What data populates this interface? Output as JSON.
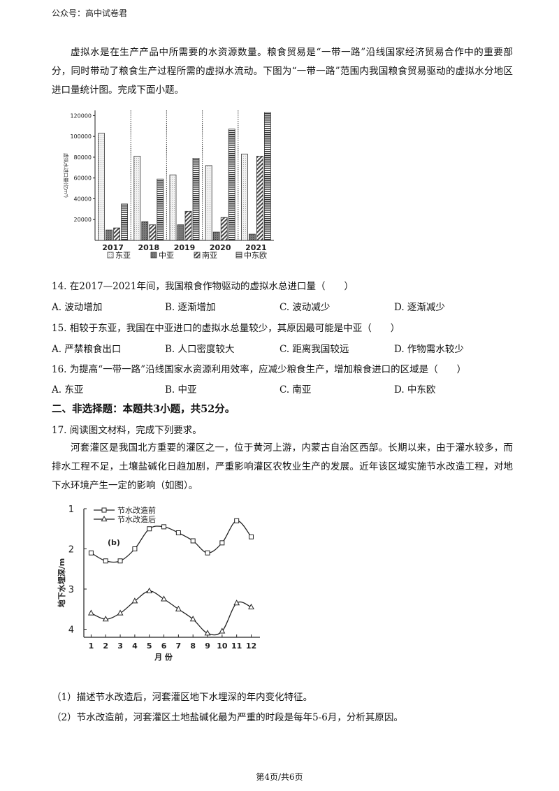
{
  "header": "公众号：高中试卷君",
  "intro": "虚拟水是在生产产品中所需要的水资源数量。粮食贸易是“一带一路”沿线国家经济贸易合作中的重要部分，同时带动了粮食生产过程所需的虚拟水流动。下图为“一带一路”范围内我国粮食贸易驱动的虚拟水分地区进口量统计图。完成下面小题。",
  "colors": {
    "bar_east": "#ededed",
    "bar_central": "#777777",
    "bar_south": "#bbbbbb",
    "bar_mideu": "#555555"
  },
  "chart_data": [
    {
      "type": "bar",
      "categories": [
        "2017",
        "2018",
        "2019",
        "2020",
        "2021"
      ],
      "series": [
        {
          "name": "东亚",
          "values": [
            103000,
            81000,
            63000,
            72000,
            83000
          ]
        },
        {
          "name": "中亚",
          "values": [
            10000,
            18000,
            15000,
            8000,
            6000
          ]
        },
        {
          "name": "南亚",
          "values": [
            12000,
            15000,
            28000,
            22000,
            81000
          ]
        },
        {
          "name": "中东欧",
          "values": [
            35000,
            59000,
            79000,
            107000,
            123000
          ]
        }
      ],
      "ylabel": "虚拟水进口量(亿m³)",
      "yticks": [
        "20000",
        "40000",
        "60000",
        "80000",
        "100000",
        "120000"
      ],
      "ylim": [
        0,
        125000
      ],
      "legend_position": "bottom",
      "grid": false
    },
    {
      "type": "line",
      "annotation": "(b)",
      "x": [
        1,
        2,
        3,
        4,
        5,
        6,
        7,
        8,
        9,
        10,
        11,
        12
      ],
      "xticks": [
        "1",
        "2",
        "3",
        "4",
        "5",
        "6",
        "7",
        "8",
        "9",
        "10",
        "11",
        "12"
      ],
      "yticks": [
        "1",
        "2",
        "3",
        "4"
      ],
      "ylim": [
        1,
        4.2
      ],
      "xlabel": "月 份",
      "ylabel": "地下水埋深/m",
      "series": [
        {
          "name": "节水改造前",
          "values": [
            2.1,
            2.3,
            2.3,
            2.0,
            1.5,
            1.45,
            1.6,
            1.8,
            2.1,
            1.85,
            1.3,
            1.7
          ]
        },
        {
          "name": "节水改造后",
          "values": [
            3.6,
            3.75,
            3.6,
            3.3,
            3.05,
            3.25,
            3.5,
            3.75,
            4.1,
            4.05,
            3.35,
            3.45
          ]
        }
      ],
      "legend_position": "top-left"
    }
  ],
  "questions": [
    {
      "stem": "14. 在2017—2021年间，我国粮食作物驱动的虚拟水总进口量（　　）",
      "options": [
        "A. 波动增加",
        "B. 逐渐增加",
        "C. 波动减少",
        "D. 逐渐减少"
      ]
    },
    {
      "stem": "15. 相较于东亚，我国在中亚进口的虚拟水总量较少，其原因最可能是中亚（　　）",
      "options": [
        "A. 严禁粮食出口",
        "B. 人口密度较大",
        "C. 距离我国较远",
        "D. 作物需水较少"
      ]
    },
    {
      "stem": "16. 为提高“一带一路”沿线国家水资源利用效率，应减少粮食生产，增加粮食进口的区域是（　　）",
      "options": [
        "A. 东亚",
        "B. 中亚",
        "C. 南亚",
        "D. 中东欧"
      ]
    }
  ],
  "section2": "二、非选择题：本题共3小题，共52分。",
  "q17": {
    "stem": "17. 阅读图文材料，完成下列要求。",
    "material": "河套灌区是我国北方重要的灌区之一，位于黄河上游，内蒙古自治区西部。长期以来，由于灌水较多，而排水工程不足，土壤盐碱化日趋加剧，严重影响灌区农牧业生产的发展。近年该区域实施节水改造工程，对地下水环境产生一定的影响（如图）。",
    "sub1": "（1）描述节水改造后，河套灌区地下水埋深的年内变化特征。",
    "sub2": "（2）节水改造前，河套灌区土地盐碱化最为严重的时段是每年5-6月，分析其原因。"
  },
  "footer": "第4页/共6页"
}
